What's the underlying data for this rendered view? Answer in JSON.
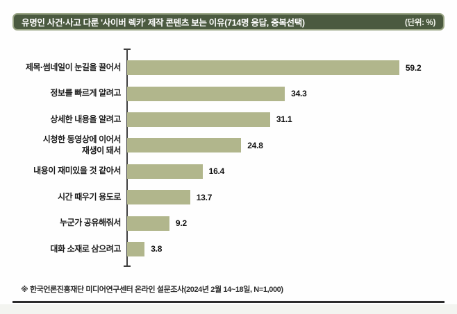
{
  "header": {
    "title": "유명인 사건·사고 다룬 '사이버 렉카' 제작 콘텐츠 보는 이유(714명 응답, 중복선택)",
    "unit": "(단위: %)",
    "bg_color": "#4b5a40",
    "border_color": "#9aa585",
    "text_color": "#ffffff"
  },
  "chart_data": {
    "type": "bar",
    "orientation": "horizontal",
    "title": "유명인 사건·사고 다룬 '사이버 렉카' 제작 콘텐츠 보는 이유(714명 응답, 중복선택)",
    "unit": "%",
    "categories": [
      "제목·썸네일이 눈길을 끌어서",
      "정보를 빠르게 알려고",
      "상세한 내용을 알려고",
      "시청한 동영상에 이어서\n재생이 돼서",
      "내용이 재미있을 것 같아서",
      "시간 때우기 용도로",
      "누군가 공유해줘서",
      "대화 소재로 삼으려고"
    ],
    "values": [
      59.2,
      34.3,
      31.1,
      24.8,
      16.4,
      13.7,
      9.2,
      3.8
    ],
    "value_labels": [
      "59.2",
      "34.3",
      "31.1",
      "24.8",
      "16.4",
      "13.7",
      "9.2",
      "3.8"
    ],
    "xlim": [
      0,
      69
    ],
    "grid": false,
    "legend": false,
    "bar_color": "#b1b68c",
    "axis_color": "#3f3f3f",
    "value_labels_shown": true
  },
  "footnote": {
    "text": "※ 한국언론진흥재단 미디어연구센터 온라인 설문조사(2024년 2월 14~18일, N=1,000)"
  }
}
